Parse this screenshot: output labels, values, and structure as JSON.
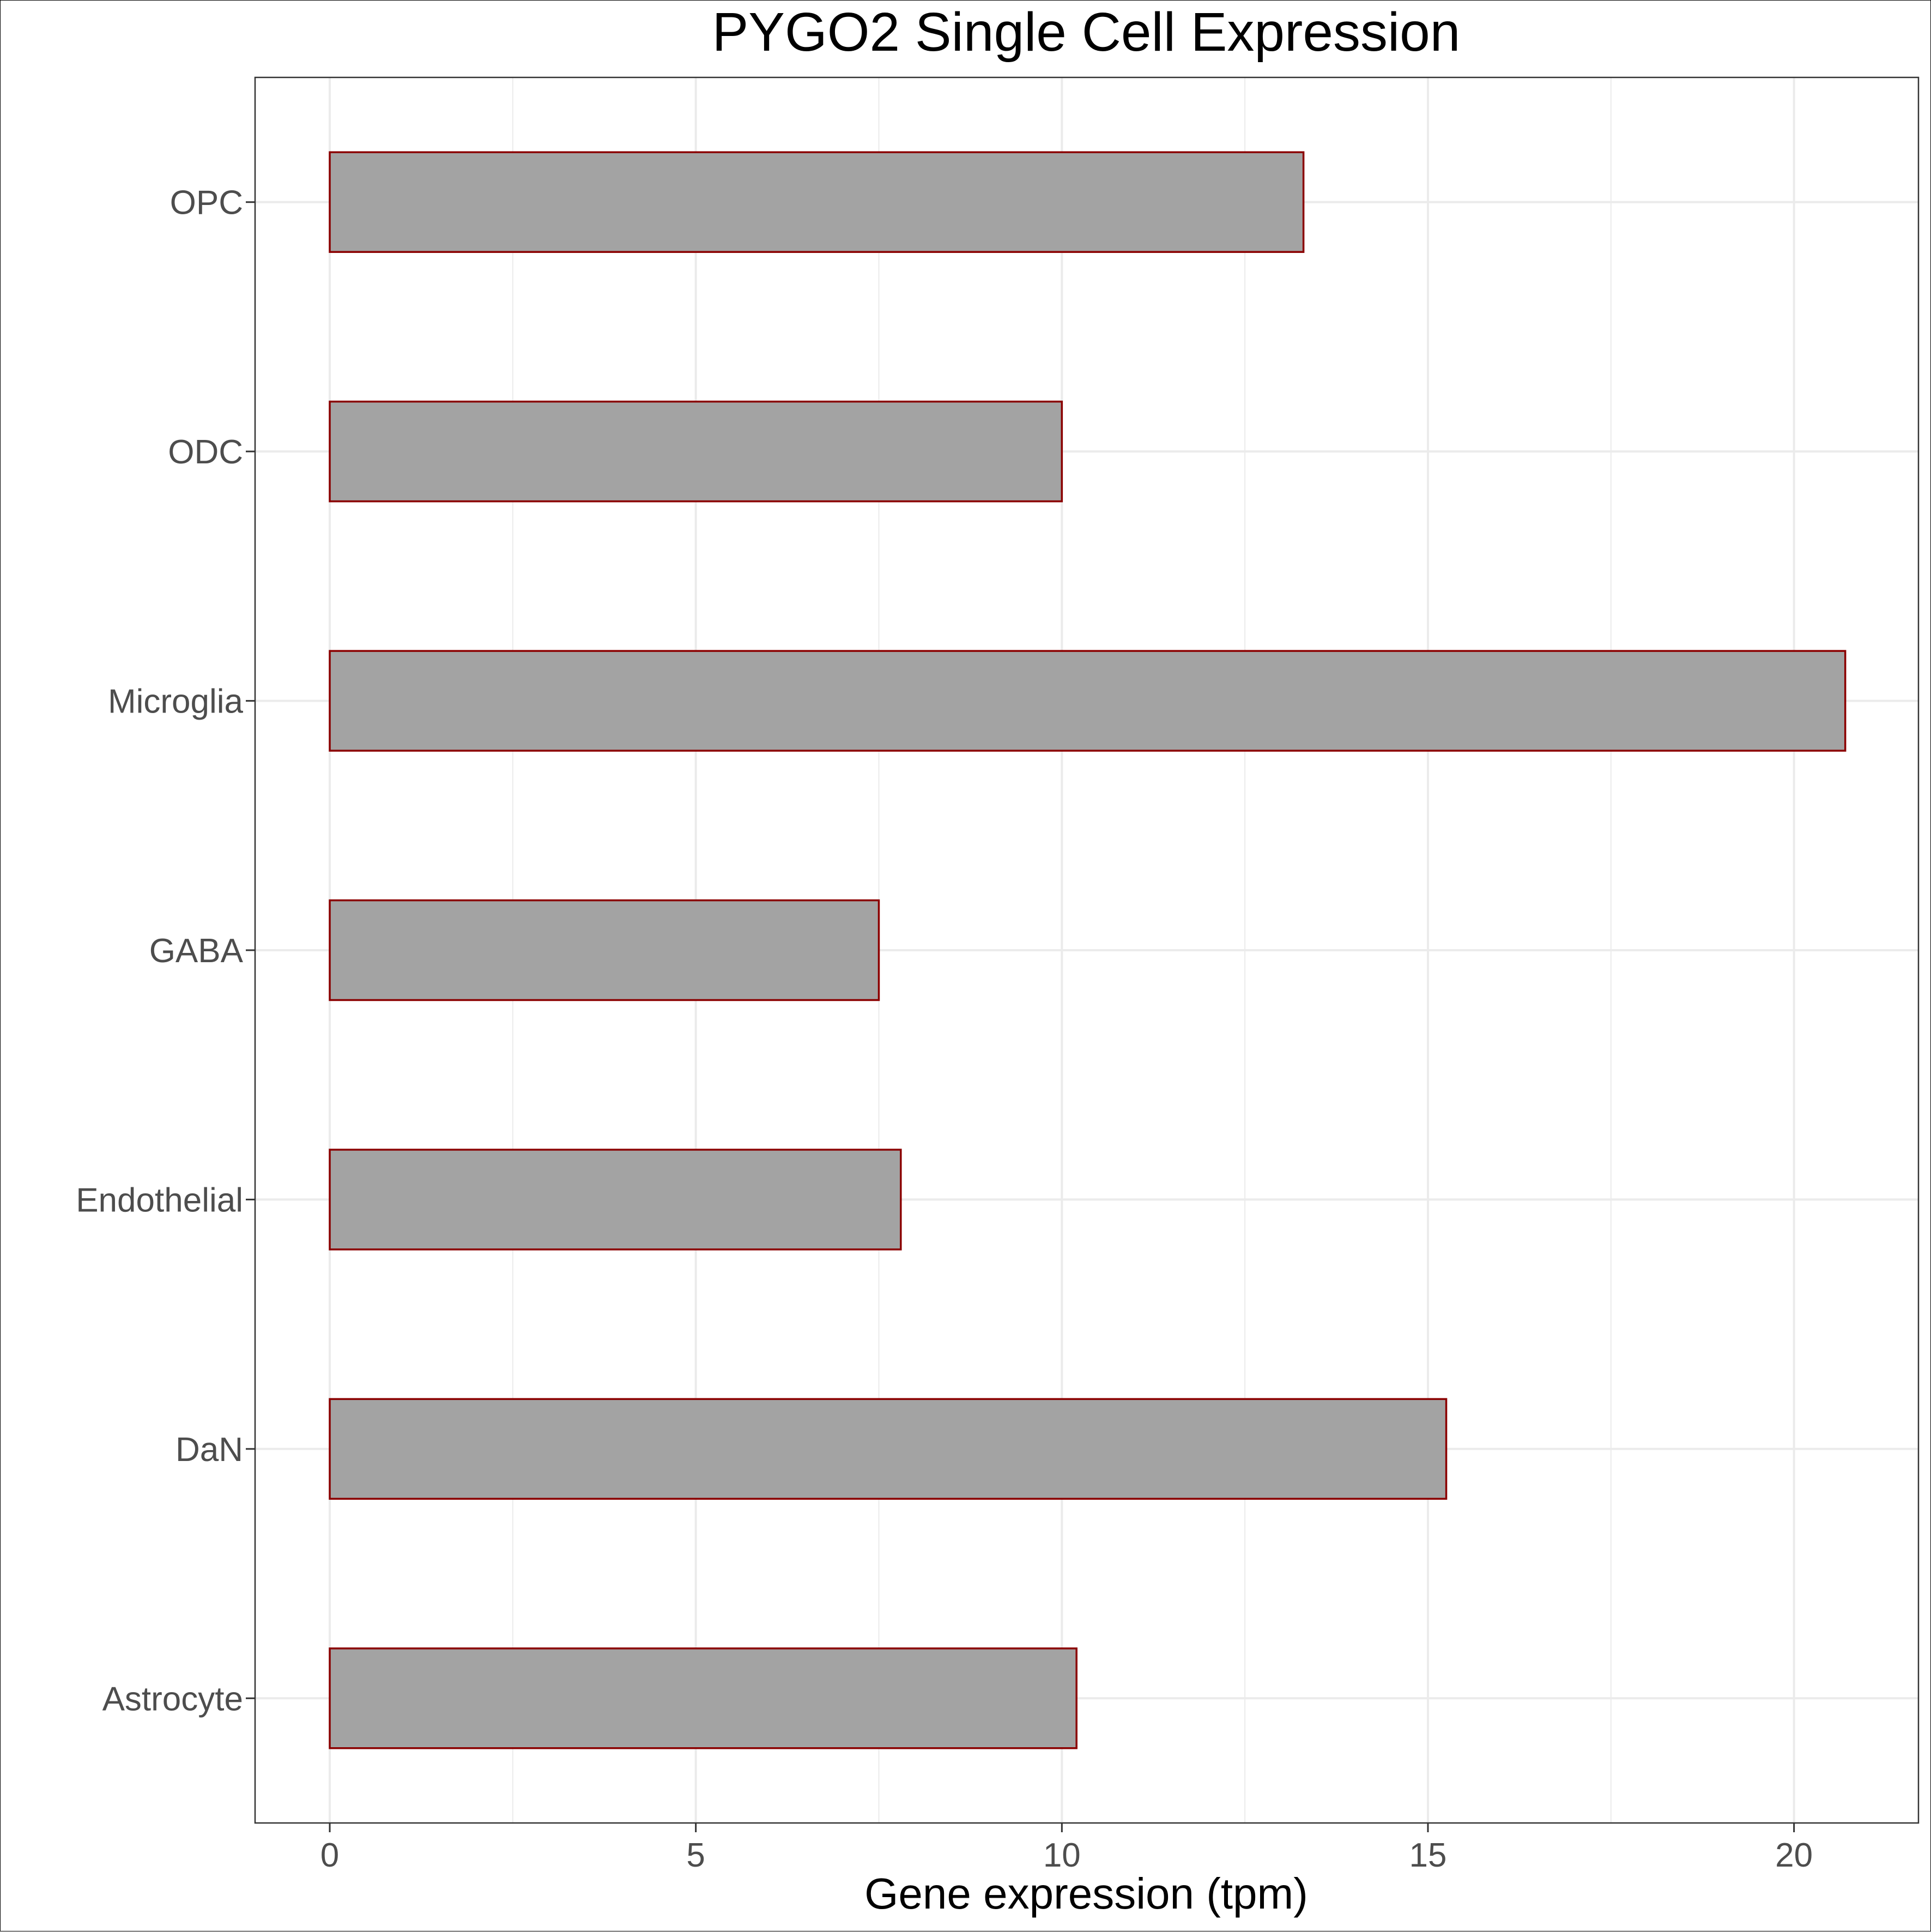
{
  "chart_data": {
    "type": "bar",
    "orientation": "horizontal",
    "title": "PYGO2 Single Cell Expression",
    "xlabel": "Gene expression (tpm)",
    "ylabel": "",
    "categories": [
      "Astrocyte",
      "DaN",
      "Endothelial",
      "GABA",
      "Microglia",
      "ODC",
      "OPC"
    ],
    "values": [
      10.2,
      15.25,
      7.8,
      7.5,
      20.7,
      10.0,
      13.3
    ],
    "xlim": [
      -1.02,
      21.7
    ],
    "xticks": [
      0,
      5,
      10,
      15,
      20
    ],
    "grid": true,
    "legend": "none",
    "colors": {
      "bar_fill": "#a3a3a3",
      "bar_stroke": "#8b0000",
      "grid": "#ebebeb",
      "panel_border": "#333333"
    }
  }
}
